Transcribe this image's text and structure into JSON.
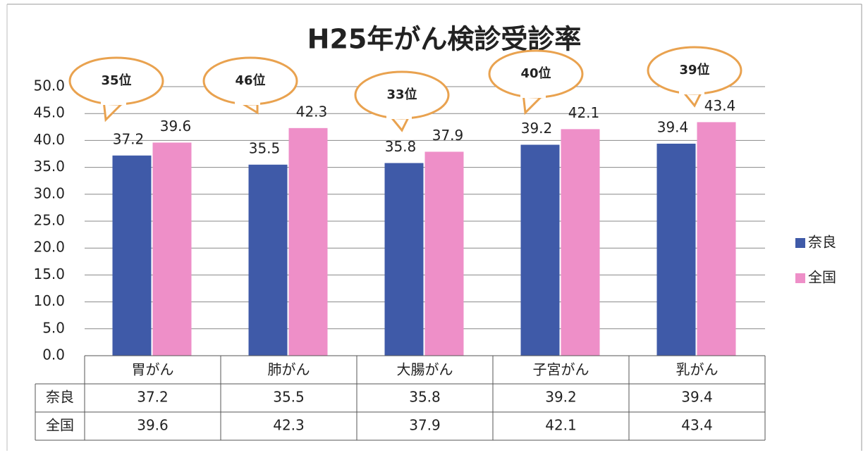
{
  "chart_data": {
    "type": "bar",
    "title": "H25年がん検診受診率",
    "categories": [
      "胃がん",
      "肺がん",
      "大腸がん",
      "子宮がん",
      "乳がん"
    ],
    "series": [
      {
        "name": "奈良",
        "color": "#3f5aa8",
        "values": [
          37.2,
          35.5,
          35.8,
          39.2,
          39.4
        ]
      },
      {
        "name": "全国",
        "color": "#ee8fc8",
        "values": [
          39.6,
          42.3,
          37.9,
          42.1,
          43.4
        ]
      }
    ],
    "annotations": [
      "35位",
      "46位",
      "33位",
      "40位",
      "39位"
    ],
    "ylim": [
      0,
      50
    ],
    "yticks": [
      {
        "value": 0,
        "label": "0.0"
      },
      {
        "value": 5,
        "label": "5.0"
      },
      {
        "value": 10,
        "label": "10.0"
      },
      {
        "value": 15,
        "label": "15.0"
      },
      {
        "value": 20,
        "label": "20.0"
      },
      {
        "value": 25,
        "label": "25.0"
      },
      {
        "value": 30,
        "label": "30.0"
      },
      {
        "value": 35,
        "label": "35.0"
      },
      {
        "value": 40,
        "label": "40.0"
      },
      {
        "value": 45,
        "label": "45.0"
      },
      {
        "value": 50,
        "label": "50.0"
      }
    ],
    "grid": true,
    "legend": "right",
    "data_table": true
  }
}
